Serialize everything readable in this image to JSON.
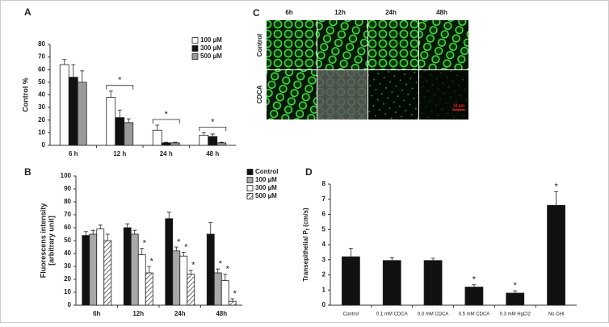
{
  "chart_data": [
    {
      "type": "bar",
      "panel": "A",
      "ylabel": "Control %",
      "categories": [
        "6 h",
        "12 h",
        "24 h",
        "48 h"
      ],
      "series": [
        {
          "name": "100 µM",
          "color": "#ffffff",
          "values": [
            64,
            38,
            12,
            8
          ],
          "errors": [
            4,
            5,
            4,
            2
          ]
        },
        {
          "name": "300 µM",
          "color": "#111111",
          "values": [
            54,
            22,
            2,
            7
          ],
          "errors": [
            10,
            6,
            0.5,
            2
          ]
        },
        {
          "name": "500 µM",
          "color": "#9a9a9a",
          "values": [
            50,
            18,
            2,
            2
          ],
          "errors": [
            9,
            3,
            0.5,
            0.5
          ]
        }
      ],
      "significance": [
        null,
        "*",
        "*",
        "*"
      ],
      "ylim": [
        0,
        80
      ],
      "yticks": [
        0,
        10,
        20,
        30,
        40,
        50,
        60,
        70,
        80
      ],
      "legend": "upper right"
    },
    {
      "type": "bar",
      "panel": "B",
      "ylabel": [
        "Fluorescens intensity",
        "[arbitrary unit]"
      ],
      "categories": [
        "6h",
        "12h",
        "24h",
        "48h"
      ],
      "series": [
        {
          "name": "Control",
          "color": "#111111",
          "values": [
            54,
            60,
            67,
            55
          ],
          "errors": [
            3,
            3,
            5,
            9
          ],
          "significance": [
            null,
            null,
            null,
            null
          ]
        },
        {
          "name": "100 µM",
          "color": "#a8a8a8",
          "values": [
            55,
            55,
            42,
            25
          ],
          "errors": [
            3,
            3,
            3,
            3
          ],
          "significance": [
            null,
            null,
            "*",
            "*"
          ]
        },
        {
          "name": "300 µM",
          "color": "#ffffff",
          "values": [
            59,
            39,
            38,
            19
          ],
          "errors": [
            3,
            5,
            3,
            5
          ],
          "significance": [
            null,
            "*",
            "*",
            "*"
          ]
        },
        {
          "name": "500 µM",
          "color": "#ffffff",
          "hatch": true,
          "values": [
            50,
            25,
            24,
            3
          ],
          "errors": [
            5,
            5,
            3,
            2
          ],
          "significance": [
            null,
            "*",
            "*",
            "*"
          ]
        }
      ],
      "ylim": [
        0,
        100
      ],
      "yticks": [
        0,
        10,
        20,
        30,
        40,
        50,
        60,
        70,
        80,
        90,
        100
      ],
      "legend": "upper right"
    },
    {
      "type": "bar",
      "panel": "D",
      "ylabel": [
        "Transepithelial P",
        "f",
        " (cm/s)"
      ],
      "categories": [
        "Control",
        "0.1 mM CDCA",
        "0.3 mM CDCA",
        "0.5 mM CDCA",
        "0.3 mM HgCl2",
        "No Cell"
      ],
      "series": [
        {
          "color": "#111111",
          "values": [
            3.2,
            2.95,
            2.95,
            1.2,
            0.8,
            6.6
          ],
          "errors": [
            0.55,
            0.2,
            0.15,
            0.15,
            0.15,
            0.9
          ],
          "significance": [
            null,
            null,
            null,
            "*",
            "*",
            "*"
          ]
        }
      ],
      "ylim": [
        0,
        8
      ],
      "yticks": [
        0,
        1,
        2,
        3,
        4,
        5,
        6,
        7,
        8
      ]
    }
  ],
  "microscopy": {
    "panel": "C",
    "columns": [
      "6h",
      "12h",
      "24h",
      "48h"
    ],
    "rows": [
      "Control",
      "CDCA"
    ],
    "scale_bar": "10 µm"
  }
}
